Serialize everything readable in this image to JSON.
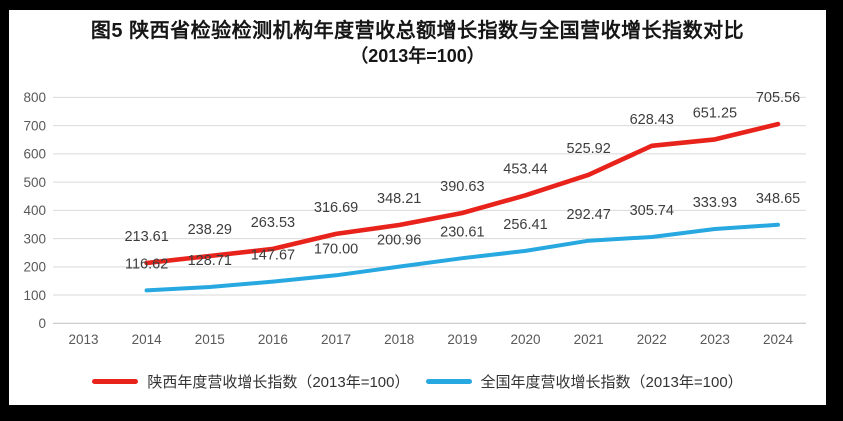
{
  "figure": {
    "title_line1": "图5  陕西省检验检测机构年度营收总额增长指数与全国营收增长指数对比",
    "title_line2": "（2013年=100）"
  },
  "chart_data": {
    "type": "line",
    "categories": [
      "2013",
      "2014",
      "2015",
      "2016",
      "2017",
      "2018",
      "2019",
      "2020",
      "2021",
      "2022",
      "2023",
      "2024"
    ],
    "series": [
      {
        "name": "陕西年度营收增长指数（2013年=100）",
        "color": "#e8231c",
        "start_category": "2014",
        "values": [
          213.61,
          238.29,
          263.53,
          316.69,
          348.21,
          390.63,
          453.44,
          525.92,
          628.43,
          651.25,
          705.56
        ]
      },
      {
        "name": "全国年度营收增长指数（2013年=100）",
        "color": "#27a8e0",
        "start_category": "2014",
        "values": [
          116.62,
          128.71,
          147.67,
          170.0,
          200.96,
          230.61,
          256.41,
          292.47,
          305.74,
          333.93,
          348.65
        ]
      }
    ],
    "ylim": [
      0,
      800
    ],
    "ytick_step": 100,
    "y_tick_labels": [
      "0",
      "100",
      "200",
      "300",
      "400",
      "500",
      "600",
      "700",
      "800"
    ],
    "grid": true,
    "data_labels": true,
    "label_decimals": 2,
    "legend_position": "bottom",
    "xlabel": "",
    "ylabel": ""
  },
  "colors": {
    "frame_bg": "#000000",
    "panel_bg": "#ffffff",
    "gridline": "#d9d9d9",
    "axis_line": "#bfbfbf",
    "tick_label": "#595959",
    "data_label": "#3d3d3d",
    "legend_text": "#333333",
    "title_text": "#161616"
  }
}
